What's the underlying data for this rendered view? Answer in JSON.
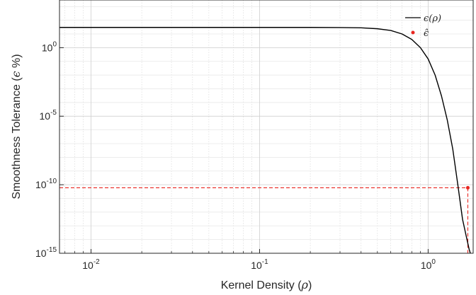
{
  "chart_data": {
    "type": "line",
    "xscale": "log",
    "yscale": "log",
    "xlim": [
      0.0065,
      1.85
    ],
    "ylim": [
      1e-15,
      3000
    ],
    "xlabel": {
      "text": "Kernel Density (",
      "symbol": "ρ",
      "close": ")"
    },
    "ylabel": {
      "text": "Smoothness Tolerance (",
      "symbol": "ϵ",
      "close": " %)"
    },
    "x_ticks": [
      {
        "value": 0.01,
        "base": "10",
        "exp": "-2"
      },
      {
        "value": 0.1,
        "base": "10",
        "exp": "-1"
      },
      {
        "value": 1,
        "base": "10",
        "exp": "0"
      }
    ],
    "y_ticks": [
      {
        "value": 1e-15,
        "base": "10",
        "exp": "-15"
      },
      {
        "value": 1e-10,
        "base": "10",
        "exp": "-10"
      },
      {
        "value": 1e-05,
        "base": "10",
        "exp": "-5"
      },
      {
        "value": 1,
        "base": "10",
        "exp": "0"
      }
    ],
    "grid": true,
    "legend_position": "top-right",
    "series": [
      {
        "name": "ϵ(ρ)",
        "style": "line",
        "color": "#000000",
        "x": [
          0.0065,
          0.05,
          0.2,
          0.3,
          0.4,
          0.5,
          0.6,
          0.7,
          0.8,
          0.9,
          1.0,
          1.1,
          1.2,
          1.3,
          1.4,
          1.5,
          1.6,
          1.7,
          1.75,
          1.78
        ],
        "y": [
          30,
          30,
          30,
          29.5,
          28,
          24,
          18,
          10,
          4,
          1,
          0.15,
          0.01,
          0.0003,
          5e-06,
          4e-08,
          1e-10,
          3e-13,
          1e-14,
          2e-15,
          1e-15
        ]
      },
      {
        "name": "ϵ̂",
        "style": "point",
        "color": "#e8251f",
        "x": [
          1.72
        ],
        "y": [
          6e-11
        ]
      }
    ],
    "reference_lines": {
      "color": "#e8251f",
      "horizontal_y": 6e-11,
      "vertical_x": 1.72
    }
  }
}
